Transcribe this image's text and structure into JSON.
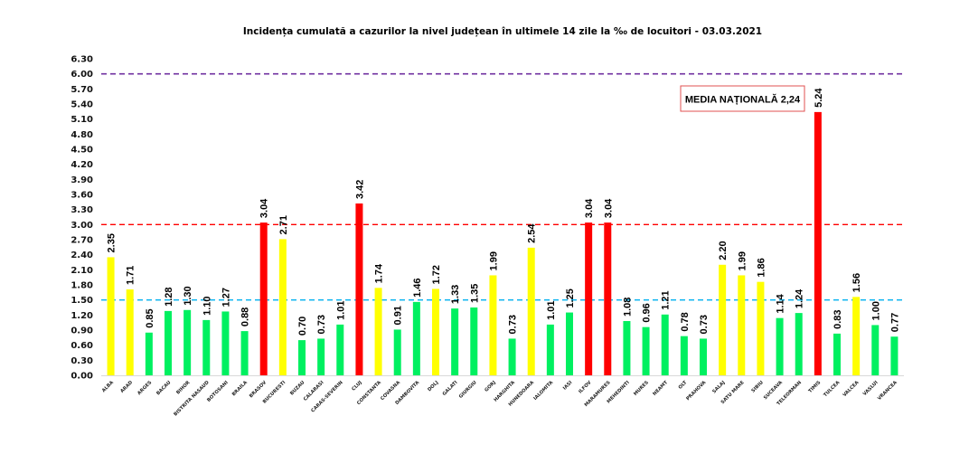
{
  "chart_data": {
    "type": "bar",
    "title": "Incidența cumulată a cazurilor la nivel județean în ultimele 14 zile la ‰ de locuitori - 03.03.2021",
    "xlabel": "",
    "ylabel": "",
    "ylim": [
      0,
      6.3
    ],
    "yticks": [
      "0.00",
      "0.30",
      "0.60",
      "0.90",
      "1.20",
      "1.50",
      "1.80",
      "2.10",
      "2.40",
      "2.70",
      "3.00",
      "3.30",
      "3.60",
      "3.90",
      "4.20",
      "4.50",
      "4.80",
      "5.10",
      "5.40",
      "5.70",
      "6.00",
      "6.30"
    ],
    "grid": false,
    "categories": [
      "ALBA",
      "ARAD",
      "ARGES",
      "BACAU",
      "BIHOR",
      "BISTRITA NASAUD",
      "BOTOSANI",
      "BRAILA",
      "BRASOV",
      "BUCURESTI",
      "BUZAU",
      "CALARASI",
      "CARAS-SEVERIN",
      "CLUJ",
      "CONSTANTA",
      "COVASNA",
      "DAMBOVITA",
      "DOLJ",
      "GALATI",
      "GIURGIU",
      "GORJ",
      "HARGHITA",
      "HUNEDOARA",
      "IALOMITA",
      "IASI",
      "ILFOV",
      "MARAMURES",
      "MEHEDINTI",
      "MURES",
      "NEAMT",
      "OLT",
      "PRAHOVA",
      "SALAJ",
      "SATU MARE",
      "SIBIU",
      "SUCEAVA",
      "TELEORMAN",
      "TIMIS",
      "TULCEA",
      "VALCEA",
      "VASLUI",
      "VRANCEA"
    ],
    "values": [
      2.35,
      1.71,
      0.85,
      1.28,
      1.3,
      1.1,
      1.27,
      0.88,
      3.04,
      2.71,
      0.7,
      0.73,
      1.01,
      3.42,
      1.74,
      0.91,
      1.46,
      1.72,
      1.33,
      1.35,
      1.99,
      0.73,
      2.54,
      1.01,
      1.25,
      3.04,
      3.04,
      1.08,
      0.96,
      1.21,
      0.78,
      0.73,
      2.2,
      1.99,
      1.86,
      1.14,
      1.24,
      5.24,
      0.83,
      1.56,
      1.0,
      0.77
    ],
    "value_labels": [
      "2.35",
      "1.71",
      "0.85",
      "1.28",
      "1.30",
      "1.10",
      "1.27",
      "0.88",
      "3.04",
      "2.71",
      "0.70",
      "0.73",
      "1.01",
      "3.42",
      "1.74",
      "0.91",
      "1.46",
      "1.72",
      "1.33",
      "1.35",
      "1.99",
      "0.73",
      "2.54",
      "1.01",
      "1.25",
      "3.04",
      "3.04",
      "1.08",
      "0.96",
      "1.21",
      "0.78",
      "0.73",
      "2.20",
      "1.99",
      "1.86",
      "1.14",
      "1.24",
      "5.24",
      "0.83",
      "1.56",
      "1.00",
      "0.77"
    ],
    "thresholds": [
      {
        "value": 6.0,
        "color": "#7030A0",
        "style": "dashed"
      },
      {
        "value": 3.0,
        "color": "#FF0000",
        "style": "dashed"
      },
      {
        "value": 1.5,
        "color": "#00B0F0",
        "style": "dashed"
      }
    ],
    "color_rules": {
      "green": "#00F060",
      "yellow": "#FFFF00",
      "red": "#FF0000",
      "green_below": 1.5,
      "red_from": 3.0
    },
    "annotation": "MEDIA NAȚIONALĂ 2,24",
    "annotation_border": "#E05050"
  }
}
